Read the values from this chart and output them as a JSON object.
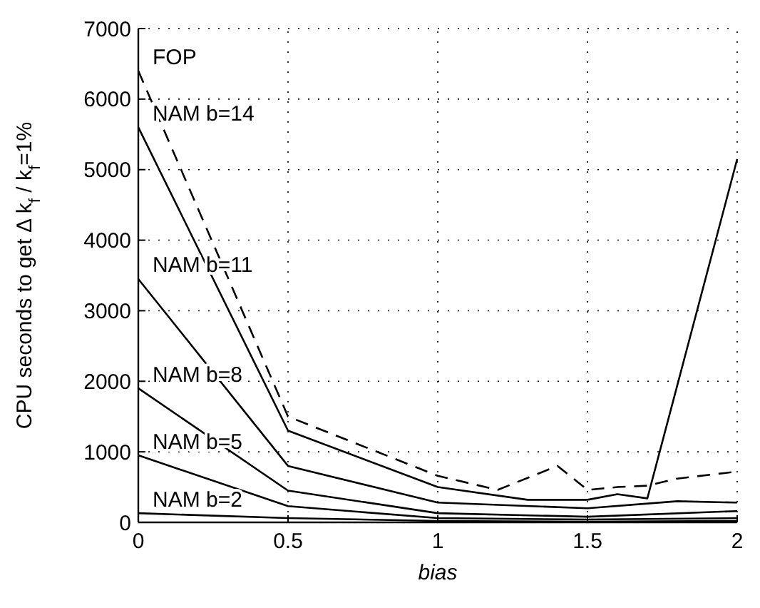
{
  "chart_data": {
    "type": "line",
    "xlabel": "bias",
    "ylabel": "CPU seconds to get Δ k$_{f}$ / k$_{f}$=1%",
    "xlim": [
      0,
      2
    ],
    "xticks": [
      0,
      0.5,
      1,
      1.5,
      2
    ],
    "ylim": [
      0,
      7000
    ],
    "yticks": [
      0,
      1000,
      2000,
      3000,
      4000,
      5000,
      6000,
      7000
    ],
    "grid": true,
    "line_style": "solid",
    "marker": "none",
    "series": [
      {
        "name": "FOP",
        "color": "#000000",
        "line_style": "dashed",
        "x": [
          0,
          0.5,
          1,
          1.2,
          1.4,
          1.5,
          1.6,
          1.7,
          1.8,
          2
        ],
        "values": [
          6400,
          1500,
          660,
          460,
          800,
          460,
          500,
          520,
          620,
          720
        ]
      },
      {
        "name": "NAM b=14",
        "color": "#000000",
        "x": [
          0,
          0.5,
          1,
          1.3,
          1.5,
          1.6,
          1.7,
          2
        ],
        "values": [
          5600,
          1300,
          500,
          320,
          320,
          400,
          340,
          5150
        ]
      },
      {
        "name": "NAM b=11",
        "color": "#000000",
        "x": [
          0,
          0.5,
          1,
          1.5,
          1.8,
          2
        ],
        "values": [
          3450,
          800,
          280,
          200,
          300,
          280
        ]
      },
      {
        "name": "NAM b=8",
        "color": "#000000",
        "x": [
          0,
          0.5,
          1,
          1.5,
          2
        ],
        "values": [
          1900,
          450,
          130,
          80,
          160
        ]
      },
      {
        "name": "NAM b=5",
        "color": "#000000",
        "x": [
          0,
          0.5,
          1,
          1.5,
          2
        ],
        "values": [
          950,
          230,
          60,
          40,
          60
        ]
      },
      {
        "name": "NAM b=2",
        "color": "#000000",
        "x": [
          0,
          0.5,
          1,
          1.5,
          2
        ],
        "values": [
          130,
          60,
          20,
          10,
          20
        ]
      }
    ]
  }
}
